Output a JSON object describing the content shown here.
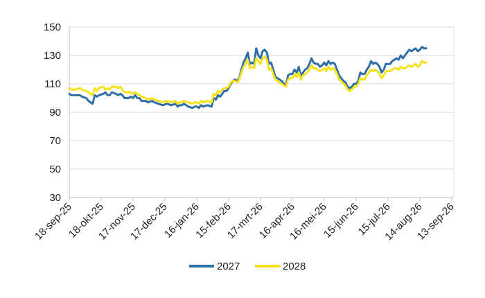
{
  "chart_data": {
    "type": "line",
    "title": "",
    "xlabel": "",
    "ylabel": "",
    "ylim": [
      30,
      150
    ],
    "yticks": [
      30,
      50,
      70,
      90,
      110,
      130,
      150
    ],
    "xtick_labels": [
      "18-sep-25",
      "18-okt-25",
      "17-nov-25",
      "17-dec-25",
      "16-jan-26",
      "15-feb-26",
      "17-mrt-26",
      "16-apr-26",
      "16-mei-26",
      "15-jun-26",
      "15-jul-26",
      "14-aug-26",
      "13-sep-26"
    ],
    "xtick_days": [
      0,
      30,
      60,
      90,
      120,
      150,
      180,
      210,
      240,
      270,
      300,
      330,
      360
    ],
    "x_range_days": [
      0,
      362
    ],
    "grid": true,
    "legend_position": "bottom",
    "series": [
      {
        "name": "2027",
        "color": "#2f6fa5",
        "points": [
          [
            0,
            103
          ],
          [
            2,
            102
          ],
          [
            6,
            102
          ],
          [
            10,
            102
          ],
          [
            12,
            101
          ],
          [
            16,
            100
          ],
          [
            18,
            98
          ],
          [
            22,
            96
          ],
          [
            24,
            102
          ],
          [
            26,
            101
          ],
          [
            28,
            102
          ],
          [
            32,
            103
          ],
          [
            34,
            104
          ],
          [
            36,
            102
          ],
          [
            38,
            102
          ],
          [
            40,
            104
          ],
          [
            44,
            103
          ],
          [
            46,
            102
          ],
          [
            48,
            103
          ],
          [
            50,
            102
          ],
          [
            52,
            100
          ],
          [
            56,
            100
          ],
          [
            58,
            101
          ],
          [
            60,
            100
          ],
          [
            62,
            102
          ],
          [
            64,
            100
          ],
          [
            66,
            100
          ],
          [
            68,
            98
          ],
          [
            72,
            98
          ],
          [
            74,
            97
          ],
          [
            78,
            98
          ],
          [
            80,
            97
          ],
          [
            84,
            96
          ],
          [
            88,
            95
          ],
          [
            92,
            96
          ],
          [
            96,
            95
          ],
          [
            100,
            96
          ],
          [
            102,
            94
          ],
          [
            104,
            95
          ],
          [
            106,
            95
          ],
          [
            108,
            96
          ],
          [
            112,
            94
          ],
          [
            116,
            93
          ],
          [
            118,
            94
          ],
          [
            120,
            94
          ],
          [
            122,
            93
          ],
          [
            124,
            95
          ],
          [
            126,
            94
          ],
          [
            130,
            95
          ],
          [
            134,
            94
          ],
          [
            136,
            100
          ],
          [
            138,
            99
          ],
          [
            140,
            102
          ],
          [
            142,
            101
          ],
          [
            144,
            103
          ],
          [
            146,
            105
          ],
          [
            148,
            105
          ],
          [
            150,
            107
          ],
          [
            152,
            110
          ],
          [
            154,
            112
          ],
          [
            156,
            113
          ],
          [
            158,
            112
          ],
          [
            160,
            114
          ],
          [
            162,
            120
          ],
          [
            164,
            125
          ],
          [
            166,
            128
          ],
          [
            168,
            132
          ],
          [
            170,
            124
          ],
          [
            172,
            125
          ],
          [
            174,
            124
          ],
          [
            176,
            135
          ],
          [
            178,
            130
          ],
          [
            180,
            128
          ],
          [
            182,
            133
          ],
          [
            184,
            134
          ],
          [
            186,
            132
          ],
          [
            188,
            124
          ],
          [
            190,
            125
          ],
          [
            192,
            120
          ],
          [
            194,
            115
          ],
          [
            196,
            114
          ],
          [
            198,
            113
          ],
          [
            200,
            112
          ],
          [
            202,
            110
          ],
          [
            204,
            109
          ],
          [
            206,
            116
          ],
          [
            208,
            117
          ],
          [
            210,
            117
          ],
          [
            212,
            120
          ],
          [
            214,
            118
          ],
          [
            216,
            122
          ],
          [
            218,
            115
          ],
          [
            220,
            118
          ],
          [
            222,
            120
          ],
          [
            224,
            121
          ],
          [
            226,
            124
          ],
          [
            228,
            128
          ],
          [
            230,
            125
          ],
          [
            232,
            124
          ],
          [
            234,
            124
          ],
          [
            236,
            122
          ],
          [
            238,
            123
          ],
          [
            240,
            125
          ],
          [
            242,
            123
          ],
          [
            244,
            126
          ],
          [
            246,
            124
          ],
          [
            248,
            125
          ],
          [
            250,
            124
          ],
          [
            252,
            120
          ],
          [
            254,
            116
          ],
          [
            256,
            114
          ],
          [
            258,
            112
          ],
          [
            260,
            111
          ],
          [
            262,
            108
          ],
          [
            264,
            107
          ],
          [
            266,
            108
          ],
          [
            268,
            110
          ],
          [
            270,
            110
          ],
          [
            272,
            112
          ],
          [
            274,
            118
          ],
          [
            276,
            117
          ],
          [
            278,
            117
          ],
          [
            280,
            120
          ],
          [
            282,
            122
          ],
          [
            284,
            126
          ],
          [
            286,
            124
          ],
          [
            288,
            125
          ],
          [
            290,
            124
          ],
          [
            292,
            122
          ],
          [
            294,
            118
          ],
          [
            296,
            120
          ],
          [
            298,
            124
          ],
          [
            300,
            124
          ],
          [
            302,
            124
          ],
          [
            304,
            126
          ],
          [
            306,
            127
          ],
          [
            308,
            128
          ],
          [
            310,
            127
          ],
          [
            312,
            130
          ],
          [
            314,
            128
          ],
          [
            316,
            130
          ],
          [
            318,
            132
          ],
          [
            320,
            134
          ],
          [
            322,
            133
          ],
          [
            324,
            134
          ],
          [
            326,
            135
          ],
          [
            328,
            133
          ],
          [
            330,
            134
          ],
          [
            332,
            136
          ],
          [
            334,
            135
          ],
          [
            336,
            135
          ]
        ]
      },
      {
        "name": "2028",
        "color": "#f5e21b",
        "points": [
          [
            0,
            107
          ],
          [
            2,
            106
          ],
          [
            6,
            106
          ],
          [
            10,
            107
          ],
          [
            12,
            106
          ],
          [
            16,
            105
          ],
          [
            18,
            104
          ],
          [
            22,
            102
          ],
          [
            24,
            107
          ],
          [
            26,
            105
          ],
          [
            28,
            107
          ],
          [
            32,
            108
          ],
          [
            34,
            106
          ],
          [
            36,
            107
          ],
          [
            38,
            106
          ],
          [
            40,
            108
          ],
          [
            44,
            108
          ],
          [
            46,
            107
          ],
          [
            48,
            108
          ],
          [
            50,
            106
          ],
          [
            52,
            104
          ],
          [
            56,
            104
          ],
          [
            58,
            104
          ],
          [
            60,
            103
          ],
          [
            62,
            104
          ],
          [
            64,
            103
          ],
          [
            66,
            102
          ],
          [
            68,
            101
          ],
          [
            72,
            100
          ],
          [
            74,
            99
          ],
          [
            78,
            100
          ],
          [
            80,
            99
          ],
          [
            84,
            98
          ],
          [
            88,
            97
          ],
          [
            92,
            98
          ],
          [
            96,
            97
          ],
          [
            100,
            98
          ],
          [
            102,
            96
          ],
          [
            104,
            97
          ],
          [
            106,
            97
          ],
          [
            108,
            98
          ],
          [
            112,
            97
          ],
          [
            116,
            96
          ],
          [
            118,
            97
          ],
          [
            120,
            97
          ],
          [
            122,
            96
          ],
          [
            124,
            98
          ],
          [
            126,
            97
          ],
          [
            130,
            98
          ],
          [
            134,
            97
          ],
          [
            136,
            103
          ],
          [
            138,
            102
          ],
          [
            140,
            105
          ],
          [
            142,
            104
          ],
          [
            144,
            106
          ],
          [
            146,
            107
          ],
          [
            148,
            107
          ],
          [
            150,
            108
          ],
          [
            152,
            111
          ],
          [
            154,
            112
          ],
          [
            156,
            112
          ],
          [
            158,
            111
          ],
          [
            160,
            113
          ],
          [
            162,
            118
          ],
          [
            164,
            122
          ],
          [
            166,
            124
          ],
          [
            168,
            127
          ],
          [
            170,
            121
          ],
          [
            172,
            122
          ],
          [
            174,
            121
          ],
          [
            176,
            128
          ],
          [
            178,
            126
          ],
          [
            180,
            124
          ],
          [
            182,
            128
          ],
          [
            184,
            129
          ],
          [
            186,
            127
          ],
          [
            188,
            120
          ],
          [
            190,
            121
          ],
          [
            192,
            117
          ],
          [
            194,
            113
          ],
          [
            196,
            112
          ],
          [
            198,
            111
          ],
          [
            200,
            110
          ],
          [
            202,
            109
          ],
          [
            204,
            108
          ],
          [
            206,
            113
          ],
          [
            208,
            114
          ],
          [
            210,
            114
          ],
          [
            212,
            117
          ],
          [
            214,
            115
          ],
          [
            216,
            118
          ],
          [
            218,
            113
          ],
          [
            220,
            116
          ],
          [
            222,
            117
          ],
          [
            224,
            118
          ],
          [
            226,
            120
          ],
          [
            228,
            123
          ],
          [
            230,
            121
          ],
          [
            232,
            121
          ],
          [
            234,
            120
          ],
          [
            236,
            119
          ],
          [
            238,
            120
          ],
          [
            240,
            121
          ],
          [
            242,
            119
          ],
          [
            244,
            122
          ],
          [
            246,
            120
          ],
          [
            248,
            121
          ],
          [
            250,
            120
          ],
          [
            252,
            117
          ],
          [
            254,
            113
          ],
          [
            256,
            112
          ],
          [
            258,
            110
          ],
          [
            260,
            109
          ],
          [
            262,
            106
          ],
          [
            264,
            105
          ],
          [
            266,
            106
          ],
          [
            268,
            108
          ],
          [
            270,
            108
          ],
          [
            272,
            110
          ],
          [
            274,
            114
          ],
          [
            276,
            113
          ],
          [
            278,
            113
          ],
          [
            280,
            116
          ],
          [
            282,
            118
          ],
          [
            284,
            120
          ],
          [
            286,
            119
          ],
          [
            288,
            120
          ],
          [
            290,
            119
          ],
          [
            292,
            117
          ],
          [
            294,
            114
          ],
          [
            296,
            116
          ],
          [
            298,
            119
          ],
          [
            300,
            119
          ],
          [
            302,
            119
          ],
          [
            304,
            120
          ],
          [
            306,
            121
          ],
          [
            308,
            121
          ],
          [
            310,
            120
          ],
          [
            312,
            122
          ],
          [
            314,
            121
          ],
          [
            316,
            121
          ],
          [
            318,
            122
          ],
          [
            320,
            123
          ],
          [
            322,
            122
          ],
          [
            324,
            123
          ],
          [
            326,
            124
          ],
          [
            328,
            122
          ],
          [
            330,
            123
          ],
          [
            332,
            126
          ],
          [
            334,
            125
          ],
          [
            336,
            125
          ]
        ]
      }
    ]
  }
}
